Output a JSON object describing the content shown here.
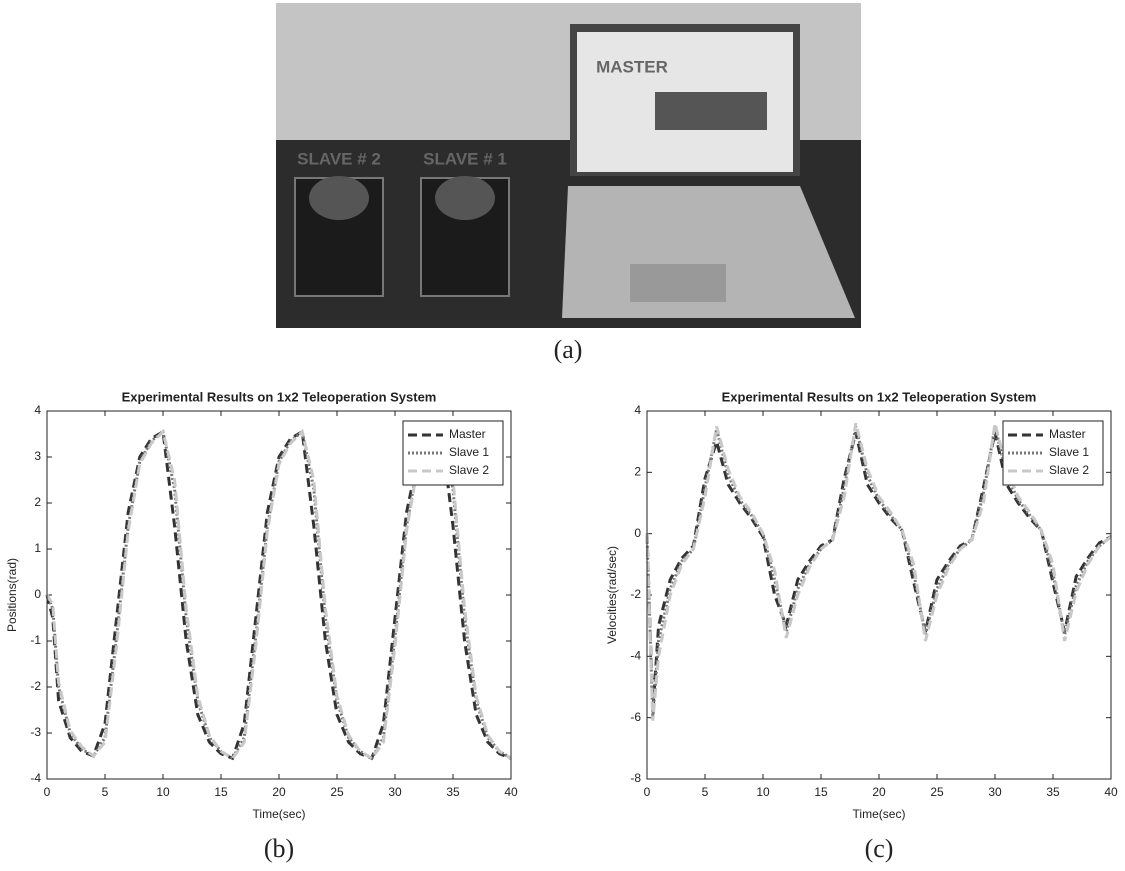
{
  "photo": {
    "labels": [
      "MASTER",
      "SLAVE # 2",
      "SLAVE # 1"
    ]
  },
  "captions": [
    "(a)",
    "(b)",
    "(c)"
  ],
  "chart_data": [
    {
      "type": "line",
      "title": "Experimental Results on 1x2 Teleoperation System",
      "xlabel": "Time(sec)",
      "ylabel": "Positions(rad)",
      "x": [
        0,
        0.5,
        1,
        2,
        3,
        4,
        5,
        6,
        7,
        8,
        9,
        10,
        11,
        12,
        13,
        14,
        15,
        16,
        17,
        18,
        19,
        20,
        21,
        22,
        23,
        24,
        25,
        26,
        27,
        28,
        29,
        30,
        31,
        32,
        33,
        34,
        35,
        36,
        37,
        38,
        39,
        40
      ],
      "xlim": [
        0,
        40
      ],
      "xticks": [
        0,
        5,
        10,
        15,
        20,
        25,
        30,
        35,
        40
      ],
      "ylim": [
        -4,
        4
      ],
      "yticks": [
        -4,
        -3,
        -2,
        -1,
        0,
        1,
        2,
        3,
        4
      ],
      "grid": false,
      "legend": "upper right",
      "series": [
        {
          "name": "Master",
          "color": "#333333",
          "style": "dashed",
          "values": [
            0,
            -0.5,
            -2.3,
            -3.1,
            -3.4,
            -3.5,
            -2.8,
            -0.5,
            1.8,
            3.0,
            3.4,
            3.55,
            1.5,
            -1.0,
            -2.6,
            -3.2,
            -3.45,
            -3.55,
            -2.8,
            -0.5,
            1.8,
            3.0,
            3.4,
            3.55,
            1.5,
            -1.0,
            -2.6,
            -3.2,
            -3.45,
            -3.55,
            -2.8,
            -0.5,
            1.8,
            3.0,
            3.4,
            3.55,
            1.5,
            -1.0,
            -2.6,
            -3.2,
            -3.45,
            -3.55
          ]
        },
        {
          "name": "Slave 1",
          "color": "#777777",
          "style": "dotted",
          "values": [
            0,
            -0.3,
            -2.0,
            -3.0,
            -3.35,
            -3.5,
            -3.1,
            -0.9,
            1.5,
            2.9,
            3.35,
            3.55,
            2.3,
            -0.5,
            -2.3,
            -3.1,
            -3.4,
            -3.55,
            -3.1,
            -0.9,
            1.5,
            2.9,
            3.35,
            3.55,
            2.3,
            -0.5,
            -2.3,
            -3.1,
            -3.4,
            -3.55,
            -3.1,
            -0.9,
            1.5,
            2.9,
            3.35,
            3.55,
            2.3,
            -0.5,
            -2.3,
            -3.1,
            -3.4,
            -3.55
          ]
        },
        {
          "name": "Slave 2",
          "color": "#c8c8c8",
          "style": "dashed",
          "values": [
            0,
            -0.2,
            -1.9,
            -2.95,
            -3.3,
            -3.5,
            -3.2,
            -1.1,
            1.4,
            2.85,
            3.3,
            3.55,
            2.5,
            -0.3,
            -2.2,
            -3.05,
            -3.4,
            -3.55,
            -3.2,
            -1.1,
            1.4,
            2.85,
            3.3,
            3.55,
            2.5,
            -0.3,
            -2.2,
            -3.05,
            -3.4,
            -3.55,
            -3.2,
            -1.1,
            1.4,
            2.85,
            3.3,
            3.55,
            2.5,
            -0.3,
            -2.2,
            -3.05,
            -3.4,
            -3.55
          ]
        }
      ]
    },
    {
      "type": "line",
      "title": "Experimental Results on 1x2 Teleoperation System",
      "xlabel": "Time(sec)",
      "ylabel": "Velocities(rad/sec)",
      "x": [
        0,
        0.5,
        1,
        2,
        3,
        4,
        5,
        6,
        7,
        8,
        9,
        10,
        11,
        12,
        13,
        14,
        15,
        16,
        17,
        18,
        19,
        20,
        21,
        22,
        23,
        24,
        25,
        26,
        27,
        28,
        29,
        30,
        31,
        32,
        33,
        34,
        35,
        36,
        37,
        38,
        39,
        40
      ],
      "xlim": [
        0,
        40
      ],
      "xticks": [
        0,
        5,
        10,
        15,
        20,
        25,
        30,
        35,
        40
      ],
      "ylim": [
        -8,
        4
      ],
      "yticks": [
        -8,
        -6,
        -4,
        -2,
        0,
        2,
        4
      ],
      "grid": false,
      "legend": "upper right",
      "series": [
        {
          "name": "Master",
          "color": "#333333",
          "style": "dashed",
          "values": [
            0,
            -5.8,
            -3.0,
            -1.5,
            -0.8,
            -0.4,
            1.8,
            3.0,
            1.6,
            1.0,
            0.5,
            -0.1,
            -2.0,
            -3.0,
            -1.5,
            -0.9,
            -0.4,
            -0.2,
            1.8,
            3.3,
            1.6,
            1.0,
            0.5,
            0.1,
            -1.6,
            -3.2,
            -1.5,
            -0.9,
            -0.4,
            -0.2,
            1.5,
            3.3,
            1.6,
            1.0,
            0.5,
            0.1,
            -1.6,
            -3.2,
            -1.4,
            -0.8,
            -0.3,
            -0.1
          ]
        },
        {
          "name": "Slave 1",
          "color": "#777777",
          "style": "dotted",
          "values": [
            0,
            -6.0,
            -3.5,
            -1.8,
            -0.9,
            -0.5,
            1.5,
            3.4,
            1.9,
            1.1,
            0.6,
            0,
            -1.5,
            -3.2,
            -1.8,
            -1.0,
            -0.5,
            -0.2,
            1.5,
            3.5,
            1.9,
            1.1,
            0.6,
            0.1,
            -1.3,
            -3.3,
            -1.8,
            -1.0,
            -0.5,
            -0.2,
            1.3,
            3.5,
            1.9,
            1.1,
            0.6,
            0.1,
            -1.3,
            -3.3,
            -1.7,
            -0.9,
            -0.4,
            -0.1
          ]
        },
        {
          "name": "Slave 2",
          "color": "#c8c8c8",
          "style": "dashed",
          "values": [
            0,
            -6.1,
            -4.0,
            -2.0,
            -1.0,
            -0.5,
            1.2,
            3.5,
            2.1,
            1.2,
            0.7,
            0,
            -1.2,
            -3.4,
            -2.0,
            -1.1,
            -0.5,
            -0.2,
            1.2,
            3.6,
            2.1,
            1.2,
            0.7,
            0.1,
            -1.0,
            -3.5,
            -2.0,
            -1.1,
            -0.5,
            -0.2,
            1.0,
            3.6,
            2.1,
            1.2,
            0.7,
            0.1,
            -1.0,
            -3.5,
            -1.9,
            -1.0,
            -0.4,
            -0.1
          ]
        }
      ]
    }
  ]
}
